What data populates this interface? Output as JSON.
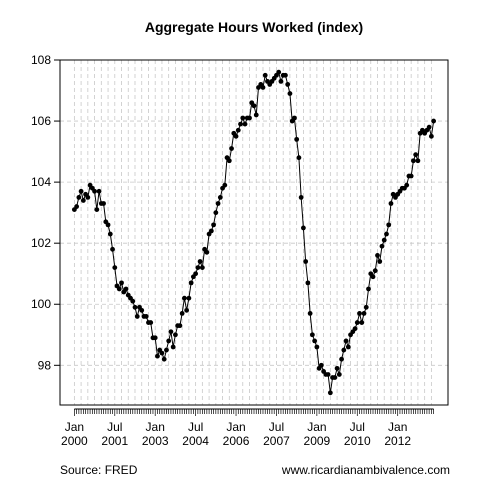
{
  "chart_data": {
    "type": "line",
    "title": "Aggregate Hours Worked (index)",
    "source": "Source: FRED",
    "credit": "www.ricardianambivalence.com",
    "categories": [
      "Jan 2000",
      null,
      null,
      null,
      null,
      null,
      null,
      null,
      null,
      null,
      null,
      null,
      null,
      null,
      null,
      null,
      null,
      null,
      "Jul 2001",
      null,
      null,
      null,
      null,
      null,
      null,
      null,
      null,
      null,
      null,
      null,
      null,
      null,
      null,
      null,
      null,
      null,
      "Jan 2003",
      null,
      null,
      null,
      null,
      null,
      null,
      null,
      null,
      null,
      null,
      null,
      null,
      null,
      null,
      null,
      null,
      null,
      "Jul 2004",
      null,
      null,
      null,
      null,
      null,
      null,
      null,
      null,
      null,
      null,
      null,
      null,
      null,
      null,
      null,
      null,
      null,
      "Jan 2006",
      null,
      null,
      null,
      null,
      null,
      null,
      null,
      null,
      null,
      null,
      null,
      null,
      null,
      null,
      null,
      null,
      null,
      "Jul 2007",
      null,
      null,
      null,
      null,
      null,
      null,
      null,
      null,
      null,
      null,
      null,
      null,
      null,
      null,
      null,
      null,
      null,
      "Jan 2009",
      null,
      null,
      null,
      null,
      null,
      null,
      null,
      null,
      null,
      null,
      null,
      null,
      null,
      null,
      null,
      null,
      null,
      "Jul 2010",
      null,
      null,
      null,
      null,
      null,
      null,
      null,
      null,
      null,
      null,
      null,
      null,
      null,
      null,
      null,
      null,
      null,
      "Jan 2012",
      null,
      null,
      null,
      null,
      null,
      null,
      null,
      null,
      null,
      null,
      null,
      null,
      null,
      null,
      null,
      null
    ],
    "values": [
      103.1,
      103.2,
      103.5,
      103.7,
      103.4,
      103.6,
      103.5,
      103.9,
      103.8,
      103.7,
      103.1,
      103.7,
      103.3,
      103.3,
      102.7,
      102.6,
      102.3,
      101.8,
      101.2,
      100.6,
      100.5,
      100.7,
      100.4,
      100.5,
      100.3,
      100.2,
      100.1,
      99.9,
      99.6,
      99.9,
      99.8,
      99.6,
      99.6,
      99.4,
      99.4,
      98.9,
      98.9,
      98.3,
      98.5,
      98.4,
      98.2,
      98.5,
      98.8,
      99.1,
      98.6,
      99.0,
      99.3,
      99.3,
      99.7,
      100.2,
      99.8,
      100.2,
      100.7,
      100.9,
      101.0,
      101.2,
      101.4,
      101.2,
      101.8,
      101.7,
      102.3,
      102.4,
      102.6,
      103.0,
      103.3,
      103.5,
      103.8,
      103.9,
      104.8,
      104.7,
      105.1,
      105.6,
      105.5,
      105.7,
      105.9,
      106.1,
      105.9,
      106.1,
      106.1,
      106.6,
      106.5,
      106.2,
      107.1,
      107.2,
      107.1,
      107.5,
      107.3,
      107.2,
      107.3,
      107.4,
      107.5,
      107.6,
      107.3,
      107.5,
      107.5,
      107.2,
      106.9,
      106.0,
      106.1,
      105.4,
      104.8,
      103.5,
      102.5,
      101.4,
      100.7,
      99.7,
      99.0,
      98.8,
      98.6,
      97.9,
      98.0,
      97.8,
      97.7,
      97.7,
      97.1,
      97.6,
      97.6,
      97.9,
      97.7,
      98.2,
      98.5,
      98.8,
      98.6,
      99.0,
      99.1,
      99.2,
      99.4,
      99.7,
      99.4,
      99.7,
      99.9,
      100.5,
      101.0,
      100.9,
      101.1,
      101.6,
      101.4,
      101.9,
      102.1,
      102.3,
      102.6,
      103.3,
      103.6,
      103.5,
      103.6,
      103.7,
      103.8,
      103.8,
      103.9,
      104.2,
      104.2,
      104.7,
      104.9,
      104.7,
      105.6,
      105.7,
      105.6,
      105.7,
      105.8,
      105.5,
      106.0
    ],
    "color": "#000000",
    "ylim": [
      96.7,
      108
    ],
    "yticks": [
      98,
      100,
      102,
      104,
      106,
      108
    ],
    "grid": true
  }
}
